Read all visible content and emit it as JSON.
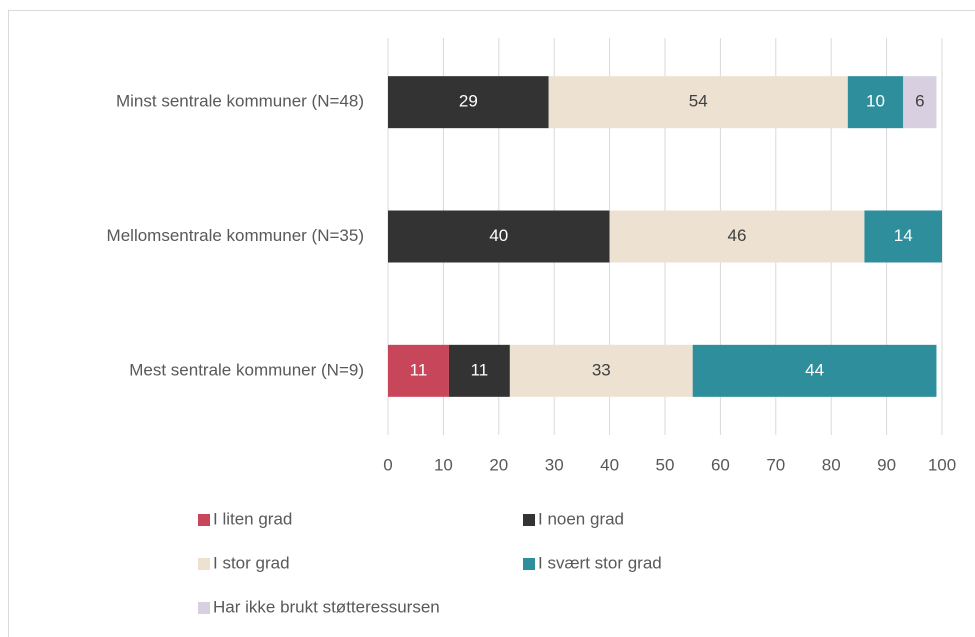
{
  "chart_data": {
    "type": "stacked-barh",
    "categories": [
      "Minst sentrale kommuner (N=48)",
      "Mellomsentrale kommuner (N=35)",
      "Mest sentrale kommuner (N=9)"
    ],
    "series": [
      {
        "name": "I liten grad",
        "color": "#c8465a",
        "values": [
          null,
          null,
          11
        ]
      },
      {
        "name": "I noen grad",
        "color": "#333333",
        "values": [
          29,
          40,
          11
        ]
      },
      {
        "name": "I stor grad",
        "color": "#ede1d1",
        "values": [
          54,
          46,
          33
        ]
      },
      {
        "name": "I svært stor grad",
        "color": "#2f8e9c",
        "values": [
          10,
          14,
          44
        ]
      },
      {
        "name": "Har ikke brukt støtteressursen",
        "color": "#d8cfe0",
        "values": [
          6,
          null,
          null
        ]
      }
    ],
    "xlim": [
      0,
      100
    ],
    "xticks": [
      0,
      10,
      20,
      30,
      40,
      50,
      60,
      70,
      80,
      90,
      100
    ],
    "grid": true
  }
}
